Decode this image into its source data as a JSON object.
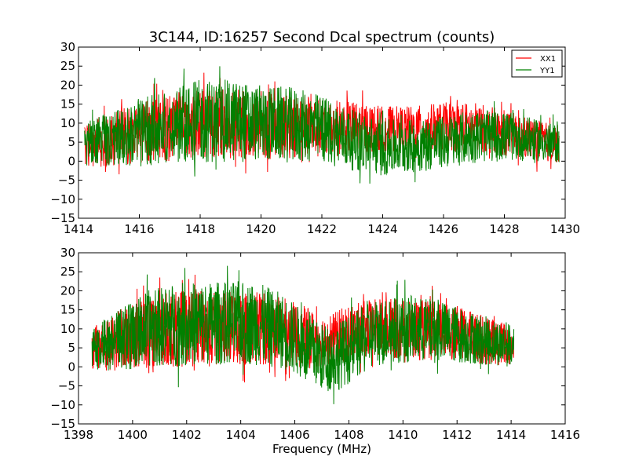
{
  "chart_data": [
    {
      "type": "line",
      "title": "3C144, ID:16257 Second Dcal spectrum (counts)",
      "xlabel": "",
      "ylabel": "",
      "xlim": [
        1414,
        1430
      ],
      "ylim": [
        -15,
        30
      ],
      "xticks": [
        1414,
        1416,
        1418,
        1420,
        1422,
        1424,
        1426,
        1428,
        1430
      ],
      "yticks": [
        -15,
        -10,
        -5,
        0,
        5,
        10,
        15,
        20,
        25,
        30
      ],
      "x_range": [
        1414.2,
        1429.8
      ],
      "grid": false,
      "legend_position": "top-right",
      "series": [
        {
          "name": "XX1",
          "color": "#ff0000",
          "profile_x": [
            1414.2,
            1415,
            1416,
            1417,
            1418,
            1419,
            1420,
            1421,
            1422,
            1423,
            1424,
            1425,
            1426,
            1427,
            1428,
            1429,
            1429.8
          ],
          "profile_center": [
            4.5,
            5.5,
            7.5,
            9,
            10,
            10,
            9.5,
            9,
            8.5,
            9,
            8.5,
            8.5,
            9,
            9,
            7.5,
            5.5,
            4.5
          ],
          "profile_spread": [
            6,
            7,
            8,
            9,
            9,
            9,
            9,
            8.5,
            8,
            7,
            6,
            6,
            6.5,
            6.5,
            6,
            5.5,
            5
          ]
        },
        {
          "name": "YY1",
          "color": "#008000",
          "profile_x": [
            1414.2,
            1415,
            1416,
            1417,
            1418,
            1419,
            1420,
            1421,
            1422,
            1423,
            1424,
            1425,
            1426,
            1427,
            1428,
            1429,
            1429.8
          ],
          "profile_center": [
            4.5,
            5.5,
            7.5,
            9.5,
            10.5,
            10.5,
            10,
            9.5,
            8.5,
            5.5,
            3.5,
            4,
            5,
            6.5,
            6.5,
            5.5,
            4.5
          ],
          "profile_spread": [
            6,
            7,
            9,
            10,
            11,
            11,
            10,
            10,
            9,
            8,
            7.5,
            7,
            7,
            7,
            6.5,
            5.5,
            5
          ]
        }
      ]
    },
    {
      "type": "line",
      "title": "",
      "xlabel": "Frequency (MHz)",
      "ylabel": "",
      "xlim": [
        1398,
        1416
      ],
      "ylim": [
        -15,
        30
      ],
      "xticks": [
        1398,
        1400,
        1402,
        1404,
        1406,
        1408,
        1410,
        1412,
        1414,
        1416
      ],
      "yticks": [
        -15,
        -10,
        -5,
        0,
        5,
        10,
        15,
        20,
        25,
        30
      ],
      "x_range": [
        1398.5,
        1414.1
      ],
      "grid": false,
      "series": [
        {
          "name": "XX1",
          "color": "#ff0000",
          "profile_x": [
            1398.5,
            1399.5,
            1400.5,
            1401.5,
            1402.5,
            1403.5,
            1404.5,
            1405.5,
            1406.5,
            1407,
            1407.5,
            1408,
            1409,
            1410,
            1411,
            1412,
            1413,
            1414.1
          ],
          "profile_center": [
            5,
            7,
            9,
            10,
            10,
            10,
            10.5,
            9.5,
            7.5,
            7,
            7.5,
            9,
            10,
            10,
            9.5,
            9,
            7,
            5.5
          ],
          "profile_spread": [
            6,
            8,
            9,
            10,
            10,
            10,
            10,
            9,
            8,
            7,
            7,
            7.5,
            8,
            8,
            8,
            7,
            6.5,
            5.5
          ]
        },
        {
          "name": "YY1",
          "color": "#008000",
          "profile_x": [
            1398.5,
            1399.5,
            1400.5,
            1401.5,
            1402.5,
            1403.5,
            1404.5,
            1405.5,
            1406.5,
            1407,
            1407.5,
            1408,
            1409,
            1410,
            1411,
            1412,
            1413,
            1414.1
          ],
          "profile_center": [
            5,
            7,
            10,
            11,
            11.5,
            11.5,
            11.5,
            9.5,
            5,
            2.5,
            2.5,
            4.5,
            9,
            10,
            9.5,
            8.5,
            7,
            5.5
          ],
          "profile_spread": [
            6,
            8,
            10,
            11,
            11,
            11,
            11,
            10,
            9,
            9,
            9,
            9,
            9,
            9,
            8.5,
            7.5,
            6.5,
            5.5
          ]
        }
      ]
    }
  ]
}
